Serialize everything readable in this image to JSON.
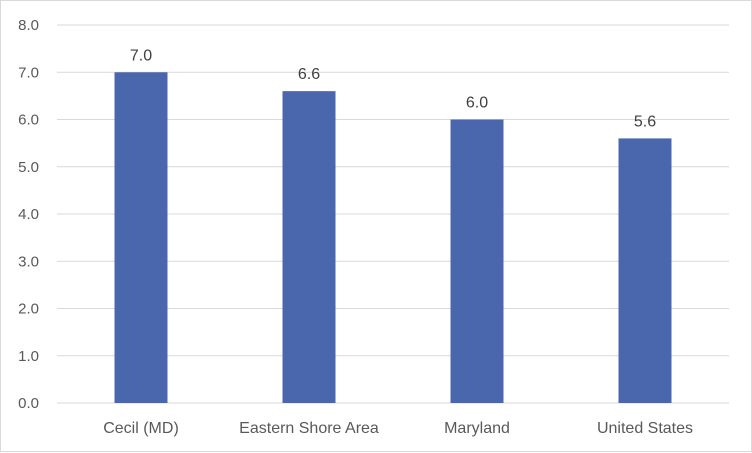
{
  "chart_data": {
    "type": "bar",
    "categories": [
      "Cecil (MD)",
      "Eastern Shore Area",
      "Maryland",
      "United States"
    ],
    "values": [
      7.0,
      6.6,
      6.0,
      5.6
    ],
    "value_labels": [
      "7.0",
      "6.6",
      "6.0",
      "5.6"
    ],
    "y_ticks": [
      "0.0",
      "1.0",
      "2.0",
      "3.0",
      "4.0",
      "5.0",
      "6.0",
      "7.0",
      "8.0"
    ],
    "ylim": [
      0,
      8
    ],
    "title": "",
    "xlabel": "",
    "ylabel": "",
    "grid": true,
    "legend": "none",
    "colors": {
      "bar": "#4a67ad",
      "grid": "#d9d9d9",
      "text": "#595959"
    }
  }
}
